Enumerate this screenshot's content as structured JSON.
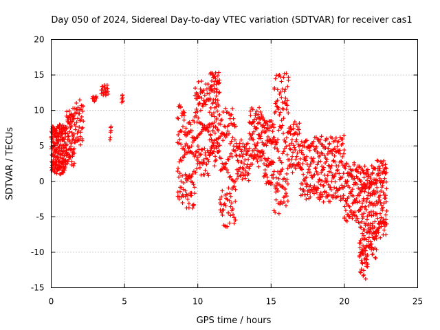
{
  "chart_data": {
    "type": "scatter",
    "title": "Day 050 of 2024, Sidereal Day-to-day VTEC variation (SDTVAR) for receiver cas1",
    "xlabel": "GPS time / hours",
    "ylabel": "SDTVAR / TECUs",
    "xlim": [
      0,
      25
    ],
    "ylim": [
      -15,
      20
    ],
    "xticks": [
      0,
      5,
      10,
      15,
      20,
      25
    ],
    "yticks": [
      -15,
      -10,
      -5,
      0,
      5,
      10,
      15,
      20
    ],
    "grid": true,
    "marker": "+",
    "color": "#ff0000",
    "series": [
      {
        "name": "SDTVAR",
        "clusters": [
          {
            "from": 0.0,
            "to": 0.35,
            "ymin": 1.0,
            "ymax": 8.0,
            "n": 70
          },
          {
            "from": 0.35,
            "to": 1.0,
            "ymin": 0.8,
            "ymax": 8.2,
            "n": 120
          },
          {
            "from": 1.0,
            "to": 1.6,
            "ymin": 2.0,
            "ymax": 10.5,
            "n": 80
          },
          {
            "from": 1.6,
            "to": 2.2,
            "ymin": 5.0,
            "ymax": 11.5,
            "n": 40
          },
          {
            "from": 2.8,
            "to": 3.1,
            "ymin": 11.2,
            "ymax": 12.0,
            "n": 10
          },
          {
            "from": 3.4,
            "to": 3.9,
            "ymin": 12.0,
            "ymax": 13.6,
            "n": 20
          },
          {
            "from": 4.0,
            "to": 4.1,
            "ymin": 5.8,
            "ymax": 7.8,
            "n": 6
          },
          {
            "from": 4.8,
            "to": 4.9,
            "ymin": 10.8,
            "ymax": 12.3,
            "n": 6
          },
          {
            "from": 8.6,
            "to": 9.1,
            "ymin": -4.0,
            "ymax": 12.0,
            "n": 50
          },
          {
            "from": 9.1,
            "to": 9.8,
            "ymin": -4.3,
            "ymax": 9.0,
            "n": 70
          },
          {
            "from": 9.8,
            "to": 10.8,
            "ymin": 0.5,
            "ymax": 14.5,
            "n": 110
          },
          {
            "from": 10.8,
            "to": 11.5,
            "ymin": 2.0,
            "ymax": 16.2,
            "n": 110
          },
          {
            "from": 11.5,
            "to": 12.6,
            "ymin": -6.5,
            "ymax": 11.0,
            "n": 110
          },
          {
            "from": 12.6,
            "to": 13.5,
            "ymin": 0.0,
            "ymax": 6.0,
            "n": 60
          },
          {
            "from": 13.5,
            "to": 14.5,
            "ymin": 2.0,
            "ymax": 10.5,
            "n": 90
          },
          {
            "from": 14.5,
            "to": 15.2,
            "ymin": -1.0,
            "ymax": 9.5,
            "n": 70
          },
          {
            "from": 15.2,
            "to": 16.2,
            "ymin": -5.0,
            "ymax": 15.5,
            "n": 120
          },
          {
            "from": 16.2,
            "to": 17.0,
            "ymin": 1.0,
            "ymax": 8.5,
            "n": 60
          },
          {
            "from": 17.0,
            "to": 20.0,
            "ymin": -3.0,
            "ymax": 6.5,
            "n": 260
          },
          {
            "from": 20.0,
            "to": 21.0,
            "ymin": -6.0,
            "ymax": 3.0,
            "n": 90
          },
          {
            "from": 21.0,
            "to": 21.6,
            "ymin": -13.8,
            "ymax": 2.5,
            "n": 120
          },
          {
            "from": 21.6,
            "to": 22.2,
            "ymin": -11.0,
            "ymax": 2.5,
            "n": 100
          },
          {
            "from": 22.2,
            "to": 22.9,
            "ymin": -8.0,
            "ymax": 3.3,
            "n": 90
          }
        ]
      }
    ]
  }
}
